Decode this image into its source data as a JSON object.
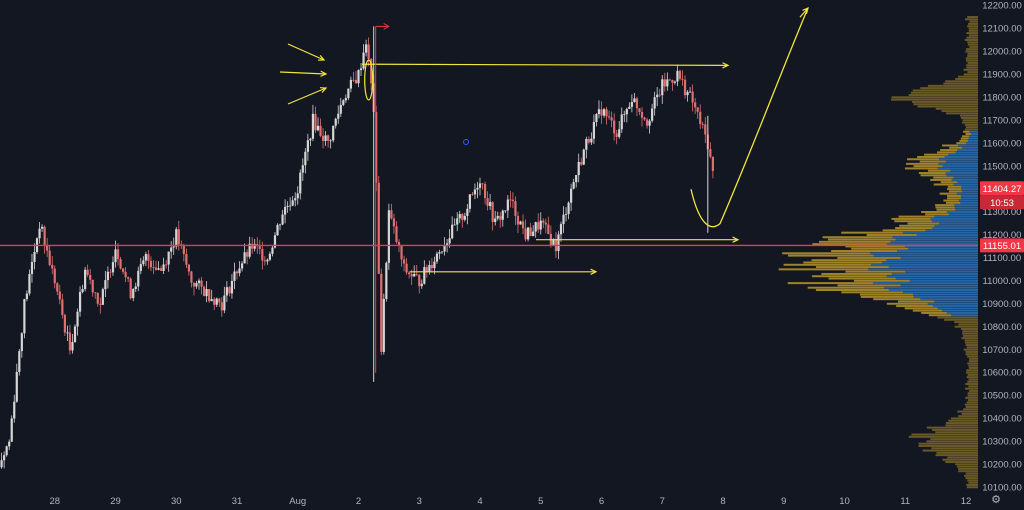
{
  "colors": {
    "background": "#131722",
    "axis_text": "#b2b5be",
    "candle_up": "#d6d6d6",
    "candle_down": "#e07070",
    "annotation": "#f2e53c",
    "red_line": "#f23645",
    "profile_blue": "#2a6fb4",
    "profile_gold": "#b08f2a"
  },
  "price_tags": {
    "current": {
      "value": 11404.27,
      "label": "11404.27"
    },
    "countdown": {
      "label": "10:53"
    },
    "horizontal_line": {
      "value": 11155.01,
      "label": "11155.01"
    }
  },
  "chart_data": {
    "type": "candlestick",
    "x_axis": {
      "ticks": [
        "28",
        "29",
        "30",
        "31",
        "Aug",
        "2",
        "3",
        "4",
        "5",
        "6",
        "7",
        "8",
        "9",
        "10",
        "11",
        "12"
      ],
      "range": [
        "Jul 27 2020",
        "Aug 12 2020"
      ]
    },
    "y_axis": {
      "position": "right",
      "ticks": [
        "10100.00",
        "10200.00",
        "10300.00",
        "10400.00",
        "10500.00",
        "10600.00",
        "10700.00",
        "10800.00",
        "10900.00",
        "11000.00",
        "11100.00",
        "11200.00",
        "11300.00",
        "11400.00",
        "11500.00",
        "11600.00",
        "11700.00",
        "11800.00",
        "11900.00",
        "12000.00",
        "12100.00",
        "12200.00"
      ],
      "range": [
        10080,
        12225
      ]
    },
    "price_path": [
      [
        "Jul 27 00:00",
        10150
      ],
      [
        "Jul 27 06:00",
        10300
      ],
      [
        "Jul 27 12:00",
        10900
      ],
      [
        "Jul 27 18:00",
        11250
      ],
      [
        "Jul 28 00:00",
        11000
      ],
      [
        "Jul 28 06:00",
        10700
      ],
      [
        "Jul 28 12:00",
        11050
      ],
      [
        "Jul 28 18:00",
        10900
      ],
      [
        "Jul 29 00:00",
        11150
      ],
      [
        "Jul 29 06:00",
        10950
      ],
      [
        "Jul 29 12:00",
        11100
      ],
      [
        "Jul 29 18:00",
        11050
      ],
      [
        "Jul 30 00:00",
        11200
      ],
      [
        "Jul 30 06:00",
        11000
      ],
      [
        "Jul 30 12:00",
        10950
      ],
      [
        "Jul 30 18:00",
        10900
      ],
      [
        "Jul 31 00:00",
        11050
      ],
      [
        "Jul 31 06:00",
        11150
      ],
      [
        "Jul 31 12:00",
        11100
      ],
      [
        "Jul 31 18:00",
        11300
      ],
      [
        "Aug 1 00:00",
        11400
      ],
      [
        "Aug 1 06:00",
        11700
      ],
      [
        "Aug 1 12:00",
        11600
      ],
      [
        "Aug 1 18:00",
        11800
      ],
      [
        "Aug 2 00:00",
        11900
      ],
      [
        "Aug 2 03:00",
        12050
      ],
      [
        "Aug 2 06:00",
        11750
      ],
      [
        "Aug 2 09:00",
        10700
      ],
      [
        "Aug 2 12:00",
        11300
      ],
      [
        "Aug 2 18:00",
        11050
      ],
      [
        "Aug 3 00:00",
        11000
      ],
      [
        "Aug 3 06:00",
        11100
      ],
      [
        "Aug 3 12:00",
        11200
      ],
      [
        "Aug 3 18:00",
        11300
      ],
      [
        "Aug 4 00:00",
        11450
      ],
      [
        "Aug 4 06:00",
        11250
      ],
      [
        "Aug 4 12:00",
        11350
      ],
      [
        "Aug 4 18:00",
        11200
      ],
      [
        "Aug 5 00:00",
        11250
      ],
      [
        "Aug 5 06:00",
        11150
      ],
      [
        "Aug 5 12:00",
        11400
      ],
      [
        "Aug 5 18:00",
        11600
      ],
      [
        "Aug 6 00:00",
        11750
      ],
      [
        "Aug 6 06:00",
        11650
      ],
      [
        "Aug 6 12:00",
        11800
      ],
      [
        "Aug 6 18:00",
        11700
      ],
      [
        "Aug 7 00:00",
        11850
      ],
      [
        "Aug 7 06:00",
        11900
      ],
      [
        "Aug 7 12:00",
        11780
      ],
      [
        "Aug 7 18:00",
        11600
      ],
      [
        "Aug 7 21:00",
        11400
      ]
    ],
    "horizontal_line": 11155.01,
    "volume_profile": "right side, blue value area approx 10850-11650, gold outside",
    "annotations": [
      "arrows pointing at Aug 2 spike top",
      "horizontal arrow at 11940",
      "horizontal arrow at 11180",
      "horizontal arrow at 11040",
      "projected curve from 11400 down to 11250 then up to 12200"
    ],
    "title": "",
    "xlabel": "",
    "ylabel": "",
    "grid": false,
    "legend": "none"
  }
}
